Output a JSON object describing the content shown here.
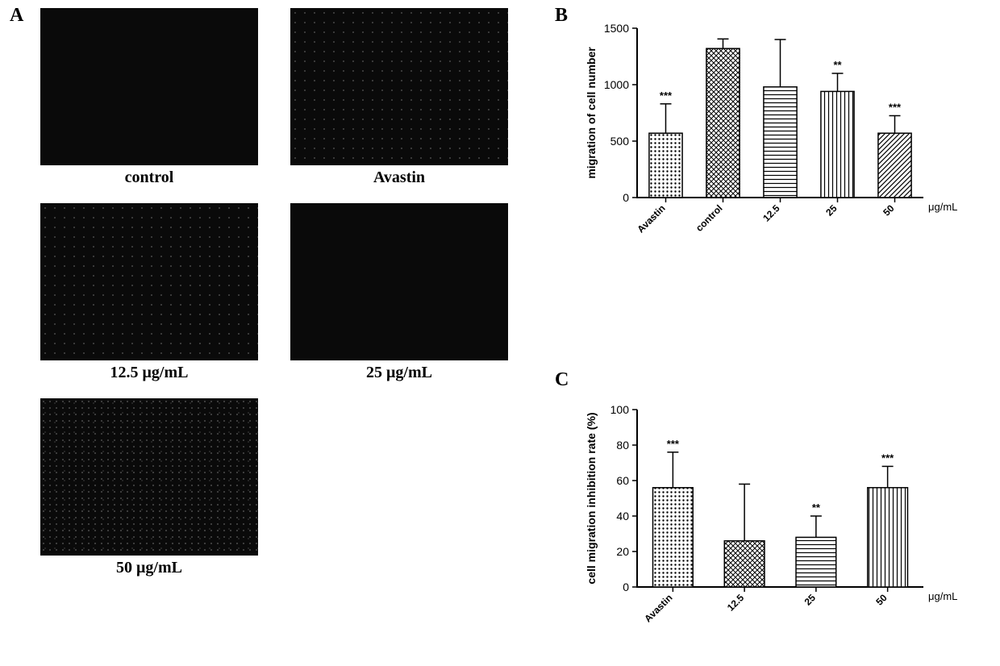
{
  "panelA": {
    "label": "A",
    "items": [
      {
        "caption": "control",
        "speckle": "none"
      },
      {
        "caption": "Avastin",
        "speckle": "light"
      },
      {
        "caption": "12.5  μg/mL",
        "speckle": "light"
      },
      {
        "caption": "25  μg/mL",
        "speckle": "none"
      },
      {
        "caption": "50  μg/mL",
        "speckle": "heavy"
      }
    ]
  },
  "panelB": {
    "label": "B",
    "type": "bar",
    "ylabel": "migration of cell number",
    "x_unit": "μg/mL",
    "ylim": [
      0,
      1500
    ],
    "ytick_step": 500,
    "title_fontsize": 14,
    "label_fontsize": 14,
    "bar_width": 0.58,
    "background_color": "#ffffff",
    "colors": {
      "bar_stroke": "#000000",
      "axis": "#000000"
    },
    "categories": [
      "Avastin",
      "control",
      "12.5",
      "25",
      "50"
    ],
    "values": [
      570,
      1320,
      980,
      940,
      570
    ],
    "errors": [
      260,
      85,
      420,
      160,
      155
    ],
    "sig": [
      "***",
      "",
      "",
      "**",
      "***"
    ],
    "patterns": [
      "dots",
      "crosshatch",
      "hlines",
      "vlines",
      "diag"
    ]
  },
  "panelC": {
    "label": "C",
    "type": "bar",
    "ylabel": "cell migration inhibition rate (%)",
    "x_unit": "μg/mL",
    "ylim": [
      0,
      100
    ],
    "ytick_step": 20,
    "title_fontsize": 14,
    "label_fontsize": 14,
    "bar_width": 0.56,
    "background_color": "#ffffff",
    "colors": {
      "bar_stroke": "#000000",
      "axis": "#000000"
    },
    "categories": [
      "Avastin",
      "12.5",
      "25",
      "50"
    ],
    "values": [
      56,
      26,
      28,
      56
    ],
    "errors": [
      20,
      32,
      12,
      12
    ],
    "sig": [
      "***",
      "",
      "**",
      "***"
    ],
    "patterns": [
      "dots",
      "crosshatch",
      "hlines",
      "vlines"
    ]
  }
}
